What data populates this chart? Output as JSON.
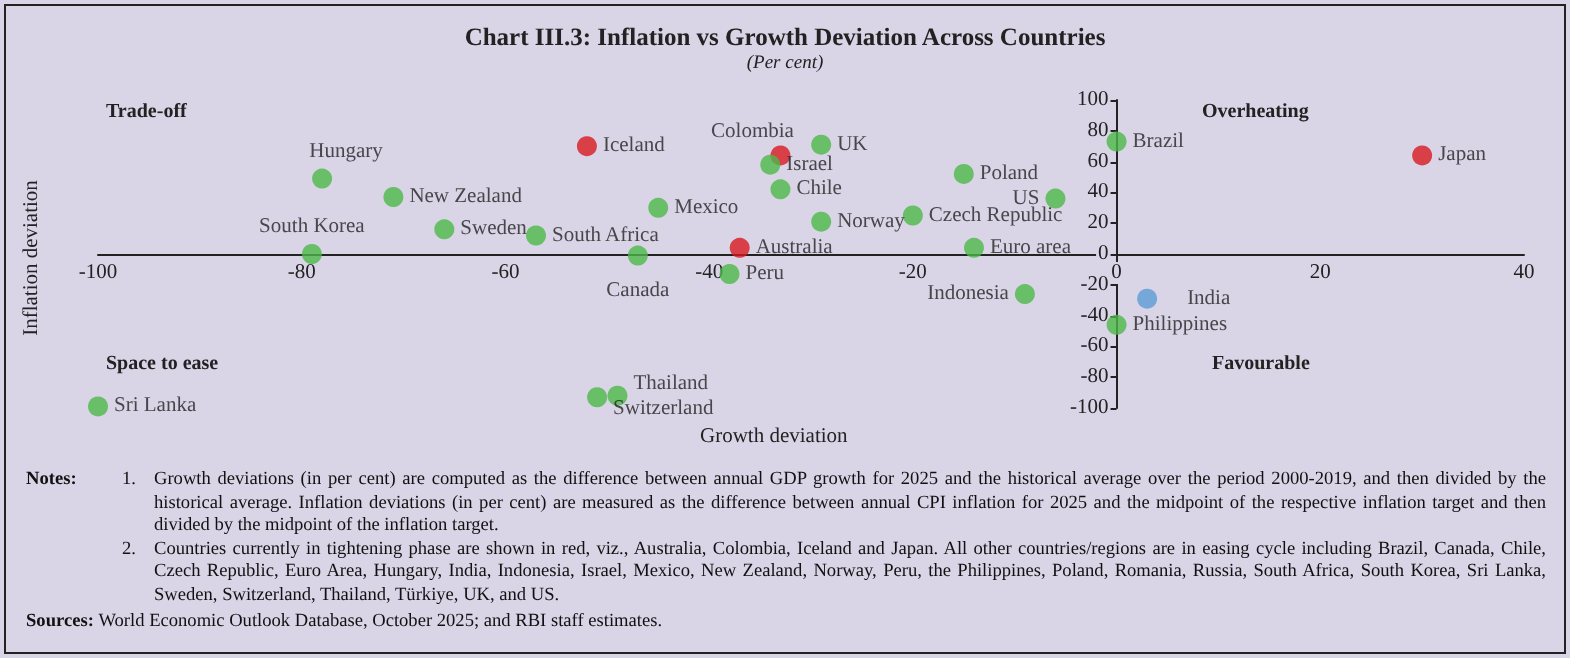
{
  "chart_data": {
    "type": "scatter",
    "title": "Chart III.3: Inflation vs Growth Deviation Across Countries",
    "subtitle": "(Per cent)",
    "xlabel": "Growth deviation",
    "ylabel": "Inflation deviation",
    "xlim": [
      -100,
      40
    ],
    "xticks": [
      -100,
      -80,
      -60,
      -40,
      -20,
      0,
      20,
      40
    ],
    "ylim": [
      -100,
      100
    ],
    "yticks": [
      -100,
      -80,
      -60,
      -40,
      -20,
      0,
      20,
      40,
      60,
      80,
      100
    ],
    "grid": false,
    "legend": false,
    "marker": "circle",
    "series": [
      {
        "name": "Hungary",
        "color": "#4cb848",
        "x": [
          -78
        ],
        "values": [
          49
        ]
      },
      {
        "name": "Iceland",
        "color": "#d7191f",
        "x": [
          -52
        ],
        "values": [
          70
        ]
      },
      {
        "name": "New Zealand",
        "color": "#4cb848",
        "x": [
          -71
        ],
        "values": [
          37
        ]
      },
      {
        "name": "Sweden",
        "color": "#4cb848",
        "x": [
          -66
        ],
        "values": [
          16
        ]
      },
      {
        "name": "South Africa",
        "color": "#4cb848",
        "x": [
          -57
        ],
        "values": [
          12
        ]
      },
      {
        "name": "South Korea",
        "color": "#4cb848",
        "x": [
          -79
        ],
        "values": [
          0
        ]
      },
      {
        "name": "Mexico",
        "color": "#4cb848",
        "x": [
          -45
        ],
        "values": [
          30
        ]
      },
      {
        "name": "Canada",
        "color": "#4cb848",
        "x": [
          -47
        ],
        "values": [
          -1
        ]
      },
      {
        "name": "Peru",
        "color": "#4cb848",
        "x": [
          -38
        ],
        "values": [
          -13
        ]
      },
      {
        "name": "Australia",
        "color": "#d7191f",
        "x": [
          -37
        ],
        "values": [
          4
        ]
      },
      {
        "name": "Colombia",
        "color": "#d7191f",
        "x": [
          -33
        ],
        "values": [
          64
        ]
      },
      {
        "name": "Israel",
        "color": "#4cb848",
        "x": [
          -34
        ],
        "values": [
          58
        ]
      },
      {
        "name": "Chile",
        "color": "#4cb848",
        "x": [
          -33
        ],
        "values": [
          42
        ]
      },
      {
        "name": "Sri Lanka",
        "color": "#4cb848",
        "x": [
          -100
        ],
        "values": [
          -99
        ]
      },
      {
        "name": "Thailand",
        "color": "#4cb848",
        "x": [
          -49
        ],
        "values": [
          -92
        ]
      },
      {
        "name": "Switzerland",
        "color": "#4cb848",
        "x": [
          -51
        ],
        "values": [
          -93
        ]
      },
      {
        "name": "UK",
        "color": "#4cb848",
        "x": [
          -29
        ],
        "values": [
          71
        ]
      },
      {
        "name": "Norway",
        "color": "#4cb848",
        "x": [
          -29
        ],
        "values": [
          21
        ]
      },
      {
        "name": "Czech Republic",
        "color": "#4cb848",
        "x": [
          -20
        ],
        "values": [
          25
        ]
      },
      {
        "name": "Poland",
        "color": "#4cb848",
        "x": [
          -15
        ],
        "values": [
          52
        ]
      },
      {
        "name": "Euro area",
        "color": "#4cb848",
        "x": [
          -14
        ],
        "values": [
          4
        ]
      },
      {
        "name": "US",
        "color": "#4cb848",
        "x": [
          -6
        ],
        "values": [
          36
        ]
      },
      {
        "name": "Indonesia",
        "color": "#4cb848",
        "x": [
          -9
        ],
        "values": [
          -26
        ]
      },
      {
        "name": "Brazil",
        "color": "#4cb848",
        "x": [
          0
        ],
        "values": [
          73
        ]
      },
      {
        "name": "Philippines",
        "color": "#4cb848",
        "x": [
          0
        ],
        "values": [
          -46
        ]
      },
      {
        "name": "India",
        "color": "#5b9bd5",
        "x": [
          3
        ],
        "values": [
          -29
        ]
      },
      {
        "name": "Japan",
        "color": "#d7191f",
        "x": [
          30
        ],
        "values": [
          64
        ]
      }
    ],
    "annotations": [
      "Trade-off",
      "Overheating",
      "Space to ease",
      "Favourable",
      "Notes:",
      "1. Growth deviations (in per cent) are computed as the difference between annual GDP growth for 2025 and the historical average over the period 2000-2019, and then divided by the historical average. Inflation deviations (in per cent) are measured as the difference between annual CPI inflation for 2025 and the midpoint of the respective inflation target and then divided by the midpoint of the inflation target.",
      "2. Countries currently in tightening phase are shown in red, viz., Australia, Colombia, Iceland and Japan. All other countries/regions are in easing cycle including Brazil, Canada, Chile, Czech Republic, Euro Area, Hungary, India, Indonesia, Israel, Mexico, New Zealand, Norway, Peru, the Philippines, Poland, Romania, Russia, South Africa, South Korea, Sri Lanka, Sweden, Switzerland, Thailand, Türkiye, UK, and US.",
      "Sources: World Economic Outlook Database, October 2025; and RBI staff estimates."
    ]
  }
}
